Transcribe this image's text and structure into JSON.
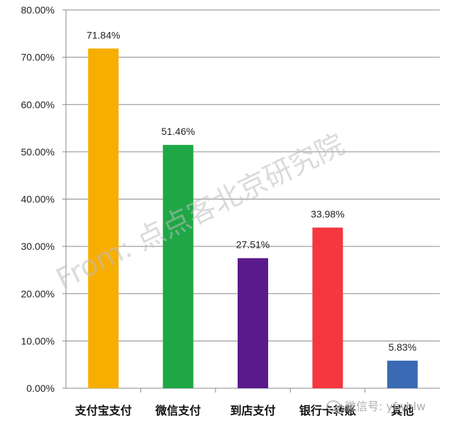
{
  "chart_data": {
    "type": "bar",
    "categories": [
      "支付宝支付",
      "微信支付",
      "到店支付",
      "银行卡转账",
      "其他"
    ],
    "values": [
      71.84,
      51.46,
      27.51,
      33.98,
      5.83
    ],
    "value_labels": [
      "71.84%",
      "51.46%",
      "27.51%",
      "33.98%",
      "5.83%"
    ],
    "colors": [
      "#F8AE00",
      "#1FA746",
      "#5B1A8C",
      "#F5373F",
      "#3A6AB4"
    ],
    "ylim": [
      0,
      80
    ],
    "yticks": [
      "0.00%",
      "10.00%",
      "20.00%",
      "30.00%",
      "40.00%",
      "50.00%",
      "60.00%",
      "70.00%",
      "80.00%"
    ],
    "grid": true,
    "legend": "none"
  },
  "watermark": "From: 点点客北京研究院",
  "wechat_credit": "微信号: yfwhlw"
}
